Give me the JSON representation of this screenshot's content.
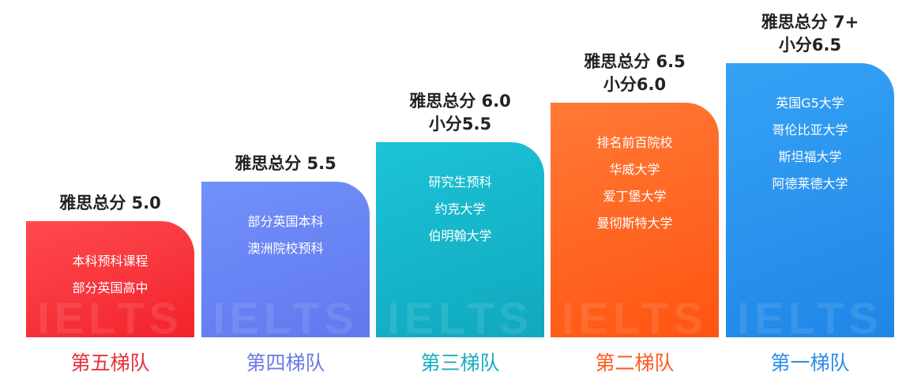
{
  "watermark": "IELTS",
  "tiers": [
    {
      "label": "第五梯队",
      "heading": [
        "雅思总分 5.0"
      ],
      "items": [
        "本科预科课程",
        "部分英国高中"
      ],
      "color_top": "#ff4a50",
      "color_bottom": "#f2222b",
      "label_color": "#e8313a"
    },
    {
      "label": "第四梯队",
      "heading": [
        "雅思总分 5.5"
      ],
      "items": [
        "部分英国本科",
        "澳洲院校预科"
      ],
      "color_top": "#7191fb",
      "color_bottom": "#6178ee",
      "label_color": "#6a7ae6"
    },
    {
      "label": "第三梯队",
      "heading": [
        "雅思总分 6.0",
        "小分5.5"
      ],
      "items": [
        "研究生预科",
        "约克大学",
        "伯明翰大学"
      ],
      "color_top": "#1cc3d8",
      "color_bottom": "#10a8bd",
      "label_color": "#17aec0"
    },
    {
      "label": "第二梯队",
      "heading": [
        "雅思总分 6.5",
        "小分6.0"
      ],
      "items": [
        "排名前百院校",
        "华威大学",
        "爱丁堡大学",
        "曼彻斯特大学"
      ],
      "color_top": "#ff7a35",
      "color_bottom": "#ff5412",
      "label_color": "#ff5a20"
    },
    {
      "label": "第一梯队",
      "heading": [
        "雅思总分 7+",
        "小分6.5"
      ],
      "items": [
        "英国G5大学",
        "哥伦比亚大学",
        "斯坦福大学",
        "阿德莱德大学"
      ],
      "color_top": "#35a2f5",
      "color_bottom": "#1f86e6",
      "label_color": "#2a8ee8"
    }
  ]
}
